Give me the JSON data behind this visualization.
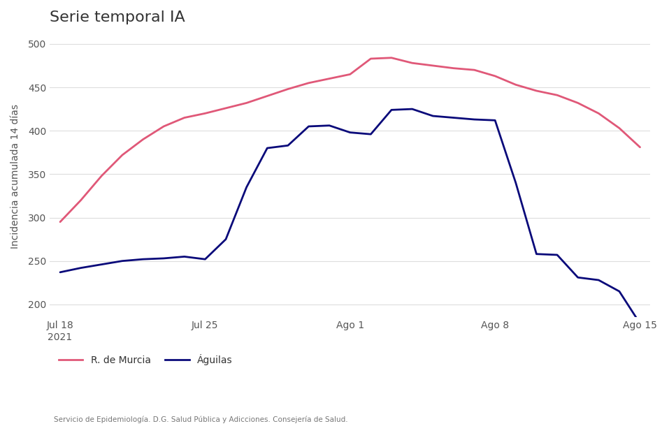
{
  "title": "Serie temporal IA",
  "ylabel": "Incidencia acumulada 14 días",
  "source_text": "Servicio de Epidemiología. D.G. Salud Pública y Adicciones. Consejería de Salud.",
  "ylim": [
    185,
    510
  ],
  "yticks": [
    200,
    250,
    300,
    350,
    400,
    450,
    500
  ],
  "x_tick_labels": [
    "Jul 18\n2021",
    "Jul 25",
    "Ago 1",
    "Ago 8",
    "Ago 15"
  ],
  "murcia_color": "#e05878",
  "aguilas_color": "#0a0a7a",
  "background_color": "#ffffff",
  "legend_labels": [
    "R. de Murcia",
    "Águilas"
  ],
  "murcia_x": [
    0,
    1,
    2,
    3,
    4,
    5,
    6,
    7,
    8,
    9,
    10,
    11,
    12,
    13,
    14,
    15,
    16,
    17,
    18,
    19,
    20,
    21,
    22,
    23,
    24,
    25,
    26,
    27,
    28
  ],
  "murcia_y": [
    295,
    320,
    348,
    372,
    390,
    405,
    415,
    420,
    426,
    432,
    440,
    448,
    455,
    460,
    465,
    483,
    484,
    478,
    475,
    472,
    470,
    463,
    453,
    446,
    441,
    432,
    420,
    403,
    381
  ],
  "aguilas_x": [
    0,
    1,
    2,
    3,
    4,
    5,
    6,
    7,
    8,
    9,
    10,
    11,
    12,
    13,
    14,
    15,
    16,
    17,
    18,
    19,
    20,
    21,
    22,
    23,
    24,
    25,
    26,
    27,
    28
  ],
  "aguilas_y": [
    237,
    242,
    246,
    250,
    252,
    253,
    255,
    252,
    275,
    335,
    380,
    383,
    405,
    406,
    398,
    396,
    424,
    425,
    417,
    415,
    413,
    412,
    340,
    258,
    257,
    231,
    228,
    215,
    178
  ]
}
